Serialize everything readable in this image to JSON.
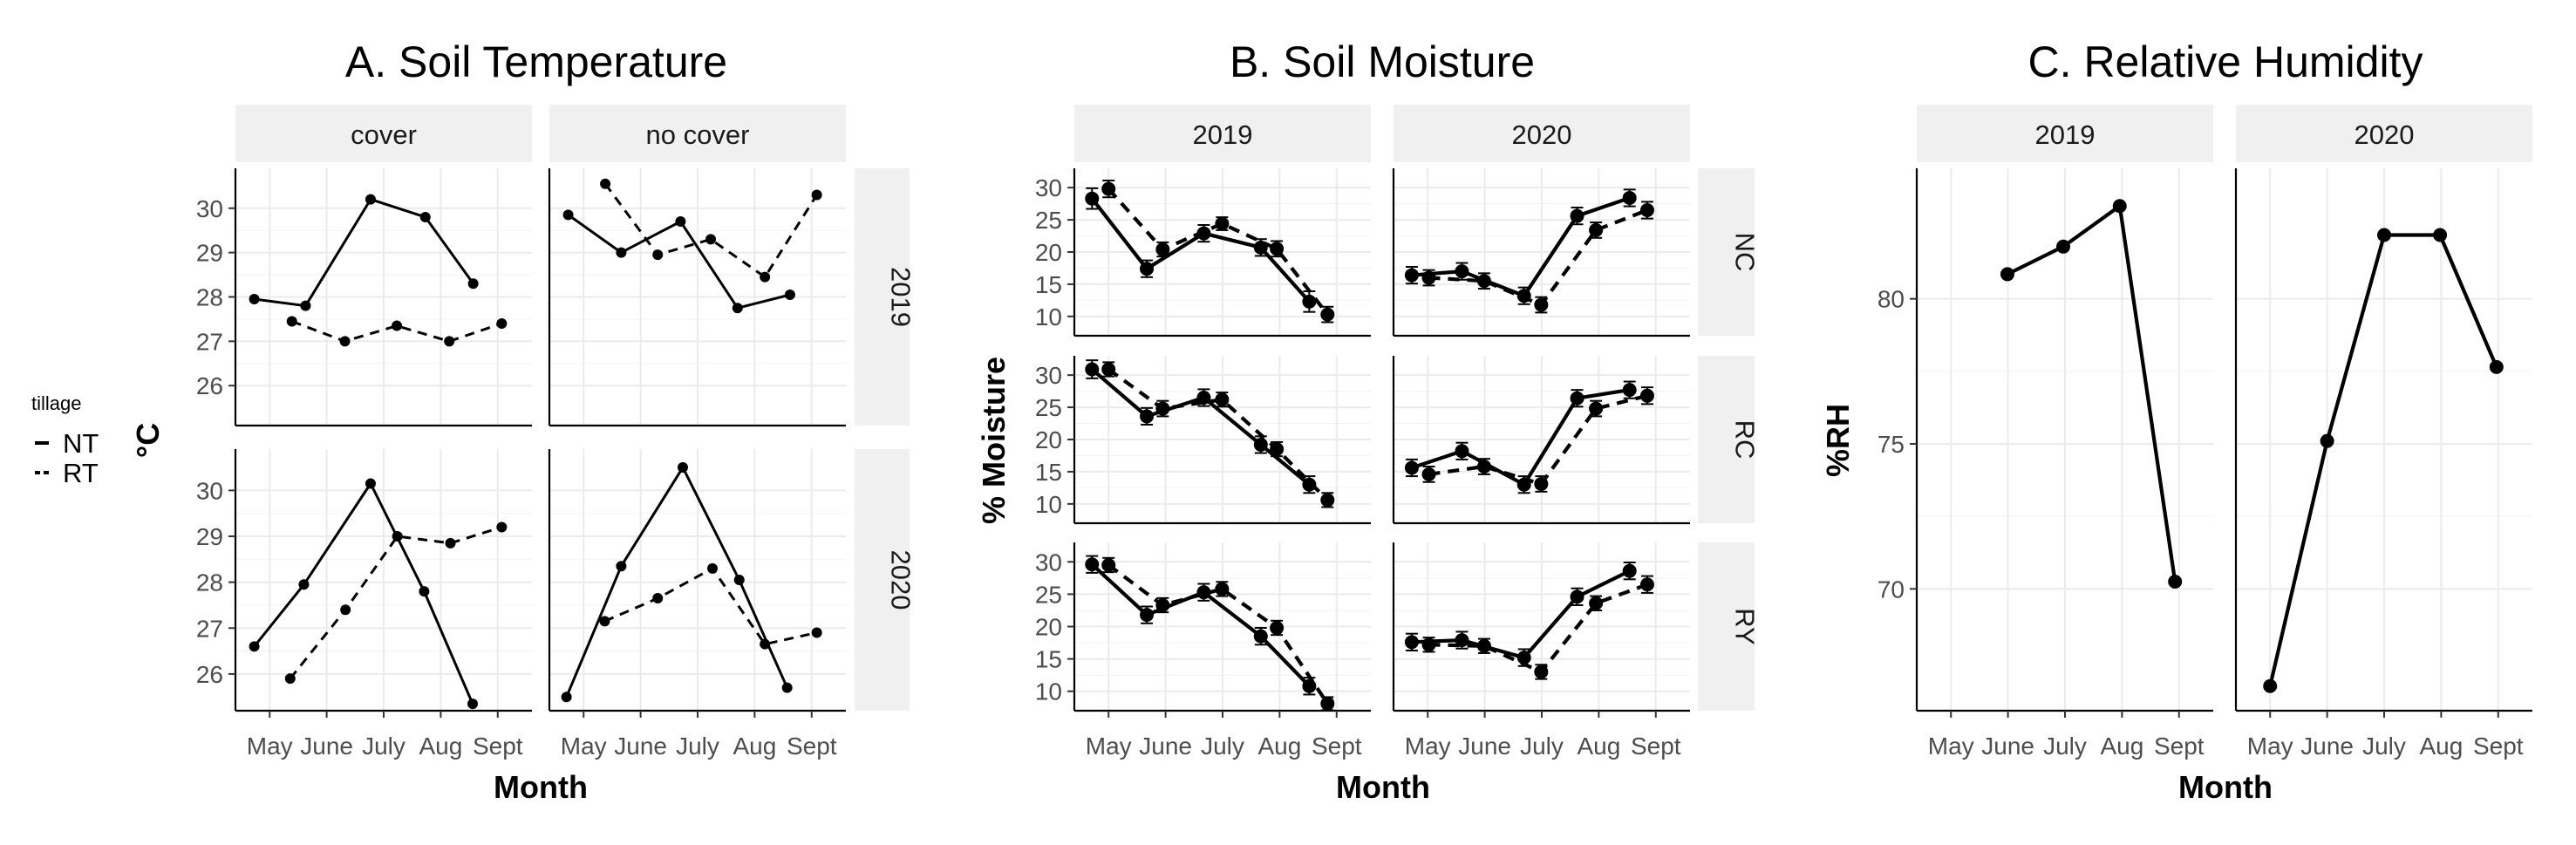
{
  "legend": {
    "title": "tillage",
    "entries": [
      "NT",
      "RT"
    ]
  },
  "chart_data": [
    {
      "type": "line",
      "title": "A. Soil Temperature",
      "ylabel": "°C",
      "xlabel": "Month",
      "categories": [
        "May",
        "June",
        "July",
        "Aug",
        "Sept"
      ],
      "col_facets": [
        "cover",
        "no cover"
      ],
      "row_facets": [
        "2019",
        "2020"
      ],
      "row_ylim": [
        [
          25.1,
          30.9
        ],
        [
          25.2,
          30.9
        ]
      ],
      "row_ticks": [
        [
          26,
          27,
          28,
          29,
          30
        ],
        [
          26,
          27,
          28,
          29,
          30
        ]
      ],
      "panels": [
        {
          "col": "cover",
          "row": "2019",
          "series": [
            {
              "name": "NT",
              "x": [
                0.73,
                1.63,
                2.77,
                3.73,
                4.57
              ],
              "values": [
                27.95,
                27.8,
                30.2,
                29.8,
                28.3
              ]
            },
            {
              "name": "RT",
              "x": [
                1.39,
                2.32,
                3.23,
                4.15,
                5.07
              ],
              "values": [
                27.45,
                27.0,
                27.35,
                27.0,
                27.4
              ]
            }
          ]
        },
        {
          "col": "no cover",
          "row": "2019",
          "series": [
            {
              "name": "NT",
              "x": [
                0.73,
                1.66,
                2.7,
                3.7,
                4.62
              ],
              "values": [
                29.85,
                29.0,
                29.7,
                27.75,
                28.05
              ]
            },
            {
              "name": "RT",
              "x": [
                1.38,
                2.3,
                3.23,
                4.18,
                5.09
              ],
              "values": [
                30.55,
                28.95,
                29.3,
                28.45,
                30.3
              ]
            }
          ]
        },
        {
          "col": "cover",
          "row": "2020",
          "series": [
            {
              "name": "NT",
              "x": [
                0.73,
                1.6,
                2.77,
                3.71,
                4.56
              ],
              "values": [
                26.6,
                27.95,
                30.15,
                27.8,
                25.35
              ]
            },
            {
              "name": "RT",
              "x": [
                1.36,
                2.33,
                3.24,
                4.17,
                5.07
              ],
              "values": [
                25.9,
                27.4,
                29.0,
                28.85,
                29.2
              ]
            }
          ]
        },
        {
          "col": "no cover",
          "row": "2020",
          "series": [
            {
              "name": "NT",
              "x": [
                0.7,
                1.66,
                2.74,
                3.73,
                4.57
              ],
              "values": [
                25.5,
                28.35,
                30.5,
                28.05,
                25.7
              ]
            },
            {
              "name": "RT",
              "x": [
                1.37,
                2.3,
                3.26,
                4.18,
                5.09
              ],
              "values": [
                27.15,
                27.65,
                28.3,
                26.65,
                26.9
              ]
            }
          ]
        }
      ]
    },
    {
      "type": "line",
      "title": "B. Soil Moisture",
      "ylabel": "% Moisture",
      "xlabel": "Month",
      "categories": [
        "May",
        "June",
        "July",
        "Aug",
        "Sept"
      ],
      "col_facets": [
        "2019",
        "2020"
      ],
      "row_facets": [
        "NC",
        "RC",
        "RY"
      ],
      "ylim": [
        7,
        33
      ],
      "yticks": [
        10,
        15,
        20,
        25,
        30
      ],
      "panels": [
        {
          "col": "2019",
          "row": "NC",
          "series": [
            {
              "name": "NT",
              "x": [
                0.71,
                1.67,
                2.67,
                3.67,
                4.52
              ],
              "values": [
                28.3,
                17.4,
                22.9,
                20.7,
                12.3
              ],
              "err": [
                1.6,
                1.3,
                1.3,
                1.3,
                1.6
              ]
            },
            {
              "name": "RT",
              "x": [
                1.0,
                1.95,
                2.99,
                3.95,
                4.84
              ],
              "values": [
                29.8,
                20.4,
                24.4,
                20.5,
                10.3
              ],
              "err": [
                1.3,
                1.1,
                1.0,
                1.2,
                1.2
              ]
            }
          ]
        },
        {
          "col": "2020",
          "row": "NC",
          "series": [
            {
              "name": "NT",
              "x": [
                0.72,
                1.6,
                2.69,
                3.62,
                4.54
              ],
              "values": [
                16.4,
                17.0,
                13.2,
                25.6,
                28.4
              ],
              "err": [
                1.3,
                1.3,
                1.3,
                1.3,
                1.3
              ]
            },
            {
              "name": "RT",
              "x": [
                1.02,
                1.99,
                2.99,
                3.95,
                4.85
              ],
              "values": [
                16.0,
                15.5,
                11.8,
                23.4,
                26.5
              ],
              "err": [
                1.2,
                1.2,
                1.2,
                1.2,
                1.3
              ]
            }
          ]
        },
        {
          "col": "2019",
          "row": "RC",
          "series": [
            {
              "name": "NT",
              "x": [
                0.71,
                1.67,
                2.67,
                3.67,
                4.52
              ],
              "values": [
                30.9,
                23.6,
                26.5,
                19.2,
                13.0
              ],
              "err": [
                1.4,
                1.3,
                1.3,
                1.3,
                1.3
              ]
            },
            {
              "name": "RT",
              "x": [
                1.0,
                1.95,
                2.99,
                3.95,
                4.84
              ],
              "values": [
                30.9,
                24.8,
                26.2,
                18.5,
                10.6
              ],
              "err": [
                1.1,
                1.2,
                1.1,
                1.1,
                1.1
              ]
            }
          ]
        },
        {
          "col": "2020",
          "row": "RC",
          "series": [
            {
              "name": "NT",
              "x": [
                0.72,
                1.6,
                2.69,
                3.62,
                4.54
              ],
              "values": [
                15.6,
                18.2,
                13.0,
                26.4,
                27.7
              ],
              "err": [
                1.3,
                1.3,
                1.3,
                1.3,
                1.3
              ]
            },
            {
              "name": "RT",
              "x": [
                1.02,
                1.99,
                2.99,
                3.95,
                4.85
              ],
              "values": [
                14.6,
                15.8,
                13.1,
                24.8,
                26.8
              ],
              "err": [
                1.2,
                1.2,
                1.2,
                1.2,
                1.3
              ]
            }
          ]
        },
        {
          "col": "2019",
          "row": "RY",
          "series": [
            {
              "name": "NT",
              "x": [
                0.71,
                1.67,
                2.67,
                3.67,
                4.52
              ],
              "values": [
                29.6,
                21.8,
                25.3,
                18.5,
                10.8
              ],
              "err": [
                1.3,
                1.3,
                1.3,
                1.3,
                1.3
              ]
            },
            {
              "name": "RT",
              "x": [
                1.0,
                1.95,
                2.99,
                3.95,
                4.84
              ],
              "values": [
                29.5,
                23.3,
                25.8,
                19.8,
                8.1
              ],
              "err": [
                1.1,
                1.1,
                1.1,
                1.1,
                1.0
              ]
            }
          ]
        },
        {
          "col": "2020",
          "row": "RY",
          "series": [
            {
              "name": "NT",
              "x": [
                0.72,
                1.6,
                2.69,
                3.62,
                4.54
              ],
              "values": [
                17.6,
                17.9,
                15.2,
                24.6,
                28.6
              ],
              "err": [
                1.3,
                1.3,
                1.3,
                1.3,
                1.3
              ]
            },
            {
              "name": "RT",
              "x": [
                1.02,
                1.99,
                2.99,
                3.95,
                4.85
              ],
              "values": [
                17.2,
                17.0,
                13.0,
                23.6,
                26.5
              ],
              "err": [
                1.1,
                1.1,
                1.1,
                1.1,
                1.3
              ]
            }
          ]
        }
      ]
    },
    {
      "type": "line",
      "title": "C. Relative Humidity",
      "ylabel": "%RH",
      "xlabel": "Month",
      "categories": [
        "May",
        "June",
        "July",
        "Aug",
        "Sept"
      ],
      "col_facets": [
        "2019",
        "2020"
      ],
      "ylim": [
        65.8,
        84.5
      ],
      "yticks": [
        70,
        75,
        80
      ],
      "panels": [
        {
          "col": "2019",
          "series": [
            {
              "name": "NT",
              "x": [
                1.99,
                2.97,
                3.96,
                4.93
              ],
              "values": [
                80.85,
                81.8,
                83.2,
                70.25
              ]
            }
          ]
        },
        {
          "col": "2020",
          "series": [
            {
              "name": "NT",
              "x": [
                1.0,
                2.0,
                3.0,
                3.98,
                4.97
              ],
              "values": [
                66.65,
                75.1,
                82.2,
                82.2,
                77.65
              ]
            }
          ]
        }
      ]
    }
  ]
}
